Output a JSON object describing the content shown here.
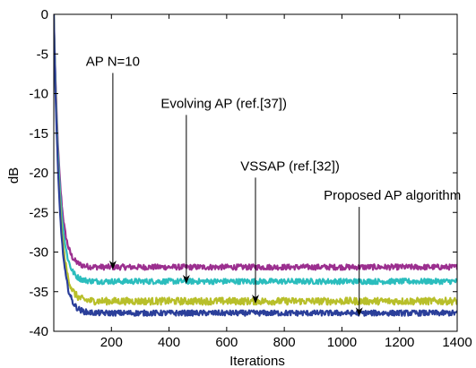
{
  "chart_data": {
    "type": "line",
    "title": "",
    "xlabel": "Iterations",
    "ylabel": "dB",
    "xlim": [
      0,
      1400
    ],
    "ylim": [
      -40,
      0
    ],
    "xticks": [
      200,
      400,
      600,
      800,
      1000,
      1200,
      1400
    ],
    "yticks": [
      0,
      -5,
      -10,
      -15,
      -20,
      -25,
      -30,
      -35,
      -40
    ],
    "grid": false,
    "series": [
      {
        "color": "#9b2f8f",
        "steady_state": -31.9,
        "noise": 0.35
      },
      {
        "color": "#2bbdbd",
        "steady_state": -33.7,
        "noise": 0.35
      },
      {
        "color": "#b8bf2a",
        "steady_state": -36.2,
        "noise": 0.45
      },
      {
        "color": "#2b3f9a",
        "steady_state": -37.7,
        "noise": 0.35
      }
    ],
    "annotations": [
      {
        "text": "AP N=10",
        "text_x": 205,
        "text_y": -6.5,
        "arrow_to": [
          205,
          -32.1
        ]
      },
      {
        "text": "Evolving AP (ref.[37])",
        "text_x": 590,
        "text_y": -11.8,
        "arrow_to": [
          460,
          -33.9
        ]
      },
      {
        "text": "VSSAP (ref.[32])",
        "text_x": 820,
        "text_y": -19.7,
        "arrow_to": [
          700,
          -36.4
        ]
      },
      {
        "text": "Proposed AP algorithm",
        "text_x": 1175,
        "text_y": -23.4,
        "arrow_to": [
          1060,
          -38.0
        ]
      }
    ]
  }
}
